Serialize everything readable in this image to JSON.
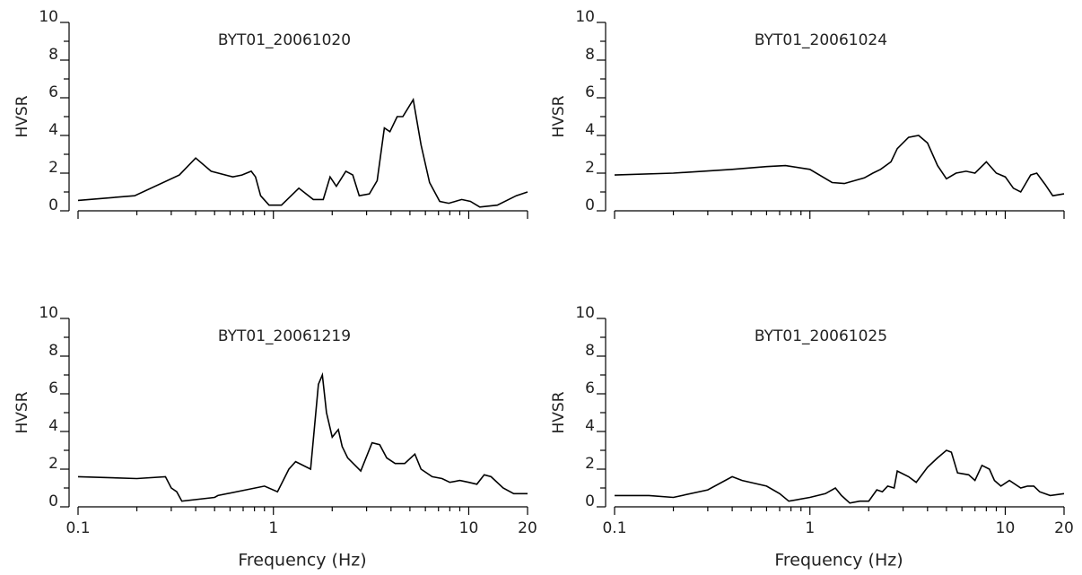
{
  "chart_data": [
    {
      "type": "line",
      "title": "BYT01_20061020",
      "ylabel": "HVSR",
      "xscale": "log",
      "color": "#000000",
      "xtick_labels": false,
      "xlim": [
        0.1,
        20
      ],
      "ylim": [
        0,
        10
      ],
      "xticks": [
        0.1,
        1,
        10,
        20
      ],
      "xminorticks": [
        0.2,
        0.3,
        0.4,
        0.5,
        0.6,
        0.7,
        0.8,
        0.9,
        2,
        3,
        4,
        5,
        6,
        7,
        8,
        9
      ],
      "yticks": [
        0,
        2,
        4,
        6,
        8,
        10
      ],
      "yminorticks": [
        1,
        3,
        5,
        7,
        9
      ],
      "x": [
        0.1,
        0.195,
        0.33,
        0.4,
        0.48,
        0.62,
        0.69,
        0.77,
        0.81,
        0.86,
        0.95,
        1.1,
        1.35,
        1.6,
        1.8,
        1.95,
        2.1,
        2.35,
        2.55,
        2.75,
        3.1,
        3.4,
        3.7,
        3.95,
        4.3,
        4.6,
        5.2,
        5.7,
        6.3,
        7.1,
        7.9,
        9.2,
        10.2,
        11.4,
        14,
        17.5,
        20
      ],
      "values": [
        0.55,
        0.8,
        1.9,
        2.8,
        2.1,
        1.8,
        1.9,
        2.1,
        1.8,
        0.8,
        0.3,
        0.3,
        1.2,
        0.6,
        0.6,
        1.8,
        1.3,
        2.1,
        1.9,
        0.8,
        0.9,
        1.6,
        4.4,
        4.2,
        5.0,
        5.0,
        5.9,
        3.5,
        1.5,
        0.5,
        0.4,
        0.6,
        0.5,
        0.2,
        0.3,
        0.8,
        1.0
      ]
    },
    {
      "type": "line",
      "title": "BYT01_20061024",
      "ylabel": "HVSR",
      "xscale": "log",
      "color": "#000000",
      "xtick_labels": false,
      "xlim": [
        0.1,
        20
      ],
      "ylim": [
        0,
        10
      ],
      "xticks": [
        0.1,
        1,
        10,
        20
      ],
      "xminorticks": [
        0.2,
        0.3,
        0.4,
        0.5,
        0.6,
        0.7,
        0.8,
        0.9,
        2,
        3,
        4,
        5,
        6,
        7,
        8,
        9
      ],
      "yticks": [
        0,
        2,
        4,
        6,
        8,
        10
      ],
      "yminorticks": [
        1,
        3,
        5,
        7,
        9
      ],
      "x": [
        0.1,
        0.2,
        0.4,
        0.6,
        0.75,
        1.0,
        1.3,
        1.5,
        1.9,
        2.1,
        2.3,
        2.6,
        2.8,
        3.2,
        3.6,
        4.0,
        4.5,
        5.0,
        5.6,
        6.3,
        7.0,
        8.0,
        9.0,
        10,
        11,
        12,
        13.5,
        14.5,
        16,
        17.5,
        20
      ],
      "values": [
        1.9,
        2.0,
        2.2,
        2.35,
        2.4,
        2.2,
        1.5,
        1.45,
        1.75,
        2.0,
        2.2,
        2.6,
        3.3,
        3.9,
        4.0,
        3.6,
        2.4,
        1.7,
        2.0,
        2.1,
        2.0,
        2.6,
        2.0,
        1.8,
        1.2,
        1.0,
        1.9,
        2.0,
        1.4,
        0.8,
        0.9
      ]
    },
    {
      "type": "line",
      "title": "BYT01_20061219",
      "ylabel": "HVSR",
      "xlabel": "Frequency (Hz)",
      "xscale": "log",
      "color": "#000000",
      "xtick_labels": true,
      "xlim": [
        0.1,
        20
      ],
      "ylim": [
        0,
        10
      ],
      "xticks": [
        0.1,
        1,
        10,
        20
      ],
      "xminorticks": [
        0.2,
        0.3,
        0.4,
        0.5,
        0.6,
        0.7,
        0.8,
        0.9,
        2,
        3,
        4,
        5,
        6,
        7,
        8,
        9
      ],
      "yticks": [
        0,
        2,
        4,
        6,
        8,
        10
      ],
      "yminorticks": [
        1,
        3,
        5,
        7,
        9
      ],
      "x": [
        0.1,
        0.2,
        0.28,
        0.3,
        0.32,
        0.34,
        0.5,
        0.52,
        0.9,
        1.05,
        1.2,
        1.3,
        1.55,
        1.7,
        1.78,
        1.87,
        2.0,
        2.15,
        2.25,
        2.4,
        2.8,
        3.2,
        3.5,
        3.8,
        4.2,
        4.7,
        5.3,
        5.7,
        6.5,
        7.3,
        8,
        9,
        10,
        11,
        12,
        13,
        15,
        17,
        20
      ],
      "values": [
        1.6,
        1.5,
        1.6,
        1.0,
        0.8,
        0.3,
        0.5,
        0.6,
        1.1,
        0.8,
        2.0,
        2.4,
        2.0,
        6.5,
        7.0,
        5.0,
        3.7,
        4.1,
        3.2,
        2.6,
        1.9,
        3.4,
        3.3,
        2.6,
        2.3,
        2.3,
        2.8,
        2.0,
        1.6,
        1.5,
        1.3,
        1.4,
        1.3,
        1.2,
        1.7,
        1.6,
        1.0,
        0.7,
        0.7
      ]
    },
    {
      "type": "line",
      "title": "BYT01_20061025",
      "ylabel": "HVSR",
      "xlabel": "Frequency (Hz)",
      "xscale": "log",
      "color": "#000000",
      "xtick_labels": true,
      "xlim": [
        0.1,
        20
      ],
      "ylim": [
        0,
        10
      ],
      "xticks": [
        0.1,
        1,
        10,
        20
      ],
      "xminorticks": [
        0.2,
        0.3,
        0.4,
        0.5,
        0.6,
        0.7,
        0.8,
        0.9,
        2,
        3,
        4,
        5,
        6,
        7,
        8,
        9
      ],
      "yticks": [
        0,
        2,
        4,
        6,
        8,
        10
      ],
      "yminorticks": [
        1,
        3,
        5,
        7,
        9
      ],
      "x": [
        0.1,
        0.15,
        0.2,
        0.3,
        0.4,
        0.45,
        0.6,
        0.7,
        0.78,
        1.0,
        1.2,
        1.35,
        1.45,
        1.6,
        1.8,
        2.0,
        2.2,
        2.35,
        2.5,
        2.7,
        2.8,
        3.2,
        3.5,
        4.0,
        4.5,
        5.0,
        5.3,
        5.7,
        6.5,
        7.0,
        7.6,
        8.3,
        8.8,
        9.5,
        10.5,
        12,
        13,
        14,
        15,
        17,
        20
      ],
      "values": [
        0.6,
        0.6,
        0.5,
        0.9,
        1.6,
        1.4,
        1.1,
        0.7,
        0.3,
        0.5,
        0.7,
        1.0,
        0.6,
        0.2,
        0.3,
        0.3,
        0.9,
        0.8,
        1.1,
        1.0,
        1.9,
        1.6,
        1.3,
        2.1,
        2.6,
        3.0,
        2.9,
        1.8,
        1.7,
        1.4,
        2.2,
        2.0,
        1.4,
        1.1,
        1.4,
        1.0,
        1.1,
        1.1,
        0.8,
        0.6,
        0.7
      ]
    }
  ]
}
